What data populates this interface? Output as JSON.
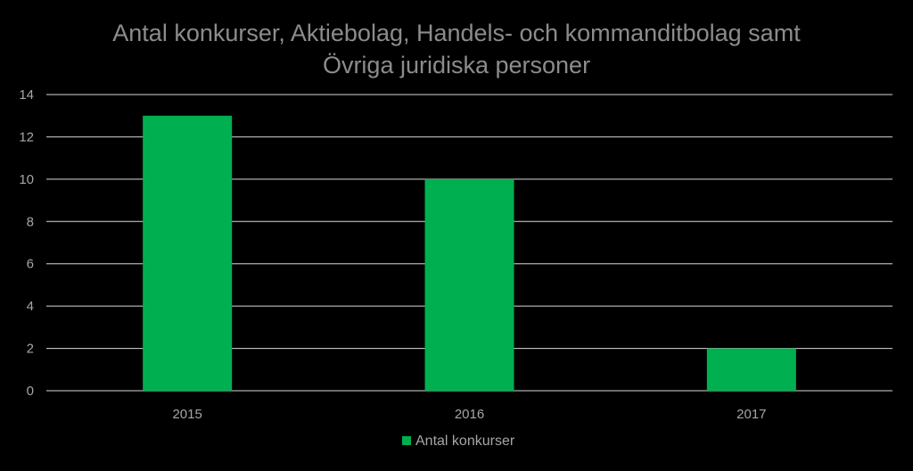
{
  "chart_data": {
    "type": "bar",
    "title_lines": [
      "Antal konkurser, Aktiebolag, Handels- och kommanditbolag samt",
      "Övriga juridiska personer"
    ],
    "categories": [
      "2015",
      "2016",
      "2017"
    ],
    "series": [
      {
        "name": "Antal konkurser",
        "values": [
          13,
          10,
          2
        ],
        "color": "#00b050"
      }
    ],
    "ylim": [
      0,
      14
    ],
    "yticks": [
      0,
      2,
      4,
      6,
      8,
      10,
      12,
      14
    ],
    "grid": true,
    "legend": "bottom"
  },
  "colors": {
    "background": "#000000",
    "gridline": "#d9d9d9",
    "axis_text": "#a6a6a6",
    "title_text": "#8c8c8c"
  }
}
